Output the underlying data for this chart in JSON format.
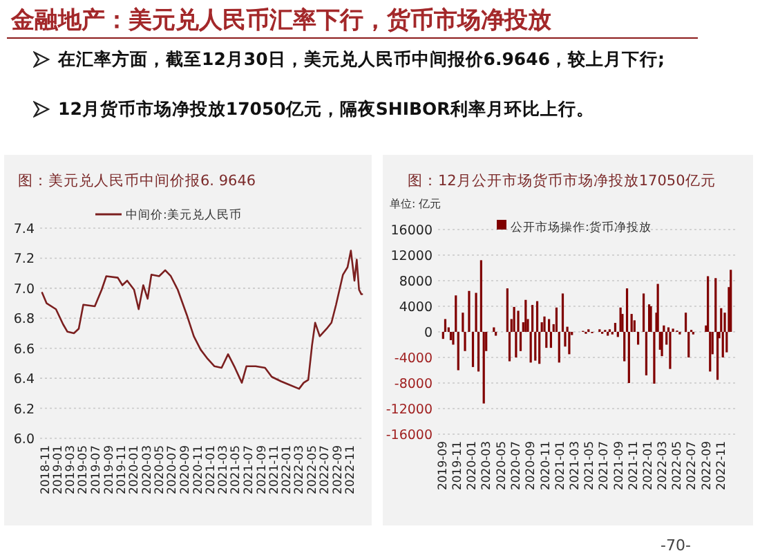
{
  "chart_data": [
    {
      "type": "line",
      "title": "图：美元兑人民币中间价报6. 9646",
      "annotations": [
        "金融地产：美元兑人民币汇率下行，货币市场净投放",
        "在汇率方面，截至12月30日，美元兑人民币中间报价6.9646，较上月下行;",
        "12月货币市场净投放17050亿元，隔夜SHIBOR利率月环比上行。",
        "-70-"
      ],
      "x": [
        "2018-10-20",
        "2018-11-10",
        "2018-12-25",
        "2019-01-28",
        "2019-02-18",
        "2019-03-21",
        "2019-04-13",
        "2019-05-05",
        "2019-06-29",
        "2019-08-01",
        "2019-08-23",
        "2019-10-17",
        "2019-11-08",
        "2019-12-01",
        "2020-01-03",
        "2020-01-25",
        "2020-02-16",
        "2020-03-08",
        "2020-03-26",
        "2020-05-02",
        "2020-05-31",
        "2020-06-27",
        "2020-07-30",
        "2020-09-12",
        "2020-10-15",
        "2020-11-17",
        "2020-12-20",
        "2021-01-22",
        "2021-02-25",
        "2021-03-28",
        "2021-04-30",
        "2021-06-02",
        "2021-06-24",
        "2021-08-07",
        "2021-09-21",
        "2021-10-23",
        "2021-12-06",
        "2022-01-09",
        "2022-03-03",
        "2022-03-25",
        "2022-04-16",
        "2022-05-04",
        "2022-05-19",
        "2022-06-10",
        "2022-07-13",
        "2022-08-05",
        "2022-08-27",
        "2022-09-29",
        "2022-10-21",
        "2022-11-06",
        "2022-11-23",
        "2022-12-04",
        "2022-12-15",
        "2022-12-26",
        "2022-12-30"
      ],
      "series": [
        {
          "name": "中间价:美元兑人民币",
          "color": "#7b1f1f",
          "values": [
            6.97,
            6.9,
            6.86,
            6.76,
            6.71,
            6.7,
            6.73,
            6.89,
            6.88,
            6.99,
            7.08,
            7.07,
            7.02,
            7.05,
            6.99,
            6.86,
            7.02,
            6.93,
            7.09,
            7.08,
            7.12,
            7.08,
            6.99,
            6.82,
            6.68,
            6.59,
            6.53,
            6.48,
            6.47,
            6.56,
            6.47,
            6.37,
            6.48,
            6.48,
            6.47,
            6.41,
            6.38,
            6.36,
            6.33,
            6.37,
            6.39,
            6.62,
            6.77,
            6.68,
            6.73,
            6.77,
            6.89,
            7.09,
            7.14,
            7.25,
            7.05,
            7.19,
            6.99,
            6.96,
            6.96
          ]
        }
      ],
      "xlim": [
        "2018-10-10",
        "2023-01-05"
      ],
      "xticks": [
        "2018-11",
        "2019-01",
        "2019-03",
        "2019-05",
        "2019-07",
        "2019-09",
        "2019-11",
        "2020-01",
        "2020-03",
        "2020-05",
        "2020-07",
        "2020-09",
        "2020-11",
        "2021-01",
        "2021-03",
        "2021-05",
        "2021-07",
        "2021-09",
        "2021-11",
        "2022-01",
        "2022-03",
        "2022-05",
        "2022-07",
        "2022-09",
        "2022-11"
      ],
      "ylim": [
        6.0,
        7.4
      ],
      "yticks": [
        {
          "value": 6,
          "label": "6.0"
        },
        6.2,
        6.4,
        6.6,
        6.8,
        {
          "value": 7,
          "label": "7.0"
        },
        7.2,
        7.4
      ],
      "grid": "y",
      "legend": "top"
    },
    {
      "type": "bar",
      "title": "图：12月公开市场货币市场净投放17050亿元",
      "annotations": [
        "单位: 亿元"
      ],
      "x": [
        "2019-09-05",
        "2019-09-14",
        "2019-09-28",
        "2019-10-07",
        "2019-10-17",
        "2019-10-28",
        "2019-11-07",
        "2019-11-26",
        "2019-12-05",
        "2019-12-22",
        "2020-01-07",
        "2020-01-20",
        "2020-01-30",
        "2020-02-10",
        "2020-02-21",
        "2020-03-02",
        "2020-04-03",
        "2020-04-11",
        "2020-05-29",
        "2020-06-07",
        "2020-06-15",
        "2020-06-26",
        "2020-07-04",
        "2020-07-13",
        "2020-07-23",
        "2020-08-03",
        "2020-08-13",
        "2020-08-22",
        "2020-09-03",
        "2020-09-10",
        "2020-09-22",
        "2020-09-30",
        "2020-10-09",
        "2020-10-19",
        "2020-10-30",
        "2020-11-07",
        "2020-11-18",
        "2020-11-26",
        "2020-12-07",
        "2020-12-19",
        "2020-12-30",
        "2021-01-14",
        "2021-01-24",
        "2021-02-02",
        "2021-02-10",
        "2021-02-21",
        "2021-04-08",
        "2021-04-20",
        "2021-05-01",
        "2021-05-16",
        "2021-06-16",
        "2021-06-27",
        "2021-07-09",
        "2021-07-20",
        "2021-07-28",
        "2021-08-08",
        "2021-08-20",
        "2021-08-31",
        "2021-09-11",
        "2021-09-19",
        "2021-09-27",
        "2021-10-08",
        "2021-10-16",
        "2021-10-27",
        "2021-11-08",
        "2021-11-23",
        "2021-12-16",
        "2021-12-27",
        "2022-01-08",
        "2022-01-15",
        "2022-01-29",
        "2022-02-07",
        "2022-02-13",
        "2022-02-22",
        "2022-03-02",
        "2022-03-10",
        "2022-03-21",
        "2022-03-29",
        "2022-04-05",
        "2022-04-17",
        "2022-05-04",
        "2022-05-15",
        "2022-06-09",
        "2022-06-21",
        "2022-07-02",
        "2022-07-10",
        "2022-09-01",
        "2022-09-09",
        "2022-09-18",
        "2022-09-28",
        "2022-10-11",
        "2022-10-19",
        "2022-10-26",
        "2022-11-03",
        "2022-11-10",
        "2022-11-18",
        "2022-11-26",
        "2022-12-05",
        "2022-12-13"
      ],
      "series": [
        {
          "name": "公开市场操作:货币净投放",
          "color": "#800000",
          "values": [
            -1100,
            2000,
            700,
            -1300,
            -2000,
            5700,
            -6000,
            3000,
            -3000,
            6400,
            -5500,
            6100,
            -6200,
            11200,
            -11200,
            -3000,
            700,
            -600,
            6800,
            -4600,
            2000,
            3900,
            -4000,
            3300,
            -3000,
            1500,
            5000,
            2000,
            -4800,
            4200,
            -4500,
            4800,
            -5000,
            1500,
            2400,
            -2500,
            2000,
            -2500,
            1200,
            3800,
            -4800,
            6000,
            -2300,
            800,
            -3500,
            -500,
            150,
            -300,
            400,
            -200,
            400,
            -300,
            300,
            -600,
            400,
            -400,
            1400,
            -800,
            3800,
            2800,
            -4600,
            6800,
            -8000,
            2800,
            1800,
            -2000,
            6000,
            -6800,
            4300,
            4000,
            -8100,
            3000,
            7500,
            -2800,
            -3800,
            1000,
            -2000,
            700,
            -5800,
            500,
            200,
            -400,
            3000,
            -4000,
            300,
            -400,
            1000,
            8700,
            -6200,
            -3500,
            8400,
            -7500,
            -1000,
            3700,
            -4000,
            3000,
            -3200,
            7000,
            9700
          ]
        }
      ],
      "xlim": [
        "2019-08-15",
        "2022-12-31"
      ],
      "xticks": [
        "2019-09",
        "2019-11",
        "2020-01",
        "2020-03",
        "2020-05",
        "2020-07",
        "2020-09",
        "2020-11",
        "2021-01",
        "2021-03",
        "2021-05",
        "2021-07",
        "2021-09",
        "2021-11",
        "2022-01",
        "2022-03",
        "2022-05",
        "2022-07",
        "2022-09",
        "2022-11"
      ],
      "ylim": [
        -16000,
        16000
      ],
      "yticks": [
        -16000,
        -12000,
        -8000,
        -4000,
        0,
        4000,
        8000,
        12000,
        16000
      ],
      "grid": "y",
      "legend": "top"
    }
  ]
}
